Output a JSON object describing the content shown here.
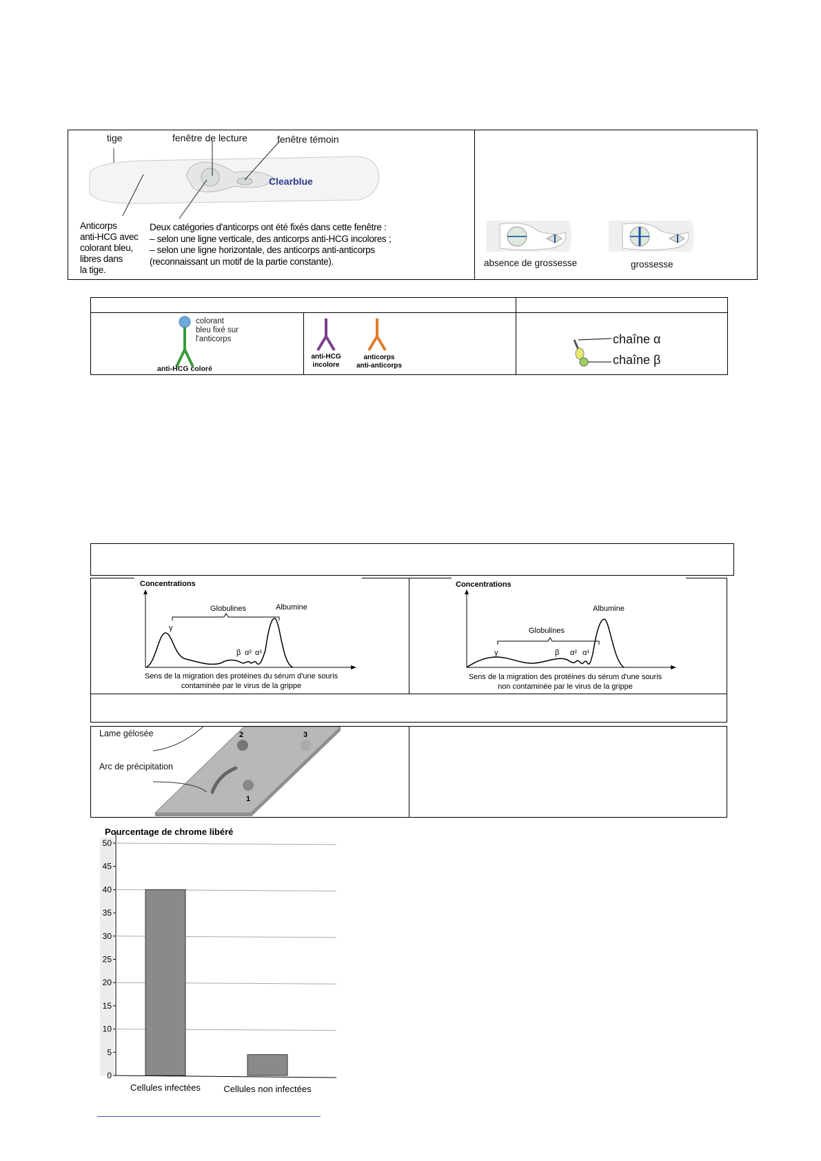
{
  "figure1": {
    "labels": {
      "tige": "tige",
      "reading_window": "fenêtre de lecture",
      "control_window": "fenêtre témoin",
      "brand": "Clearblue",
      "antibodies_left": [
        "Anticorps",
        "anti-HCG avec",
        "colorant bleu,",
        "libres dans",
        "la tige."
      ],
      "description": [
        "Deux catégories d'anticorps ont été fixés dans cette fenêtre :",
        "– selon une ligne verticale, des anticorps anti-HCG incolores ;",
        "– selon une ligne horizontale, des anticorps anti-anticorps",
        "(reconnaissant un motif de la partie constante)."
      ]
    },
    "results": [
      {
        "label": "absence de grossesse"
      },
      {
        "label": "grossesse"
      }
    ]
  },
  "figure2": {
    "colored_antibody": {
      "dye_label": [
        "colorant",
        "bleu fixé sur",
        "l'anticorps"
      ],
      "name": "anti-HCG coloré",
      "color": "#3a9a3a",
      "dye_color": "#6fa8dc"
    },
    "colorless_antibody": {
      "name": [
        "anti-HCG",
        "incolore"
      ],
      "color": "#7b3f8c"
    },
    "anti_antibody": {
      "name": [
        "anticorps",
        "anti-anticorps"
      ],
      "color": "#e07b2a"
    },
    "hormone": {
      "chain_alpha": "chaîne α",
      "chain_beta": "chaîne β"
    }
  },
  "electrophoresis": [
    {
      "ylabel": "Concentrations",
      "bracket_label": "Globulines",
      "peak_labels": [
        "γ",
        "β",
        "α²",
        "α¹",
        "Albumine"
      ],
      "caption": [
        "Sens de la migration des protéines du sérum d'une souris",
        "contaminée par le virus de la grippe"
      ]
    },
    {
      "ylabel": "Concentrations",
      "bracket_label": "Globulines",
      "peak_labels": [
        "γ",
        "β",
        "α²",
        "α¹",
        "Albumine"
      ],
      "caption": [
        "Sens de la migration des protéines du sérum d'une souris",
        "non contaminée par le virus de la grippe"
      ]
    }
  ],
  "gel": {
    "slide_label": "Lame gélosée",
    "arc_label": "Arc de précipitation",
    "wells": [
      "1",
      "2",
      "3"
    ]
  },
  "chart_data": {
    "type": "bar",
    "title": "Pourcentage de chrome libéré",
    "categories": [
      "Cellules infectées",
      "Cellules non infectées"
    ],
    "values": [
      40,
      4.5
    ],
    "ylim": [
      0,
      50
    ],
    "yticks": [
      0,
      5,
      10,
      15,
      20,
      25,
      30,
      35,
      40,
      45,
      50
    ],
    "grid": true,
    "bar_color": "#8a8a8a"
  }
}
